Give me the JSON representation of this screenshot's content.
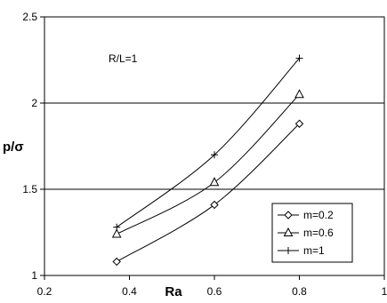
{
  "chart_data": {
    "type": "line",
    "title": "",
    "xlabel": "Ra",
    "ylabel": "p/σ",
    "xlim": [
      0.2,
      1
    ],
    "ylim": [
      1,
      2.5
    ],
    "xticks": [
      "0.2",
      "0.4",
      "0.6",
      "0.8",
      "1"
    ],
    "yticks": [
      "1",
      "1.5",
      "2",
      "2.5"
    ],
    "xtick_values": [
      0.2,
      0.4,
      0.6,
      0.8,
      1.0
    ],
    "ytick_values": [
      1.0,
      1.5,
      2.0,
      2.5
    ],
    "horizontal_gridlines": [
      1.5,
      2.0
    ],
    "annotation": "R/L=1",
    "legend_position": "bottom-right",
    "series": [
      {
        "name": "m=0.2",
        "marker": "diamond",
        "color": "#000000",
        "points": [
          [
            0.37,
            1.08
          ],
          [
            0.6,
            1.41
          ],
          [
            0.8,
            1.88
          ]
        ]
      },
      {
        "name": "m=0.6",
        "marker": "triangle",
        "color": "#000000",
        "points": [
          [
            0.37,
            1.24
          ],
          [
            0.6,
            1.54
          ],
          [
            0.8,
            2.05
          ]
        ]
      },
      {
        "name": "m=1",
        "marker": "plus",
        "color": "#000000",
        "points": [
          [
            0.37,
            1.28
          ],
          [
            0.6,
            1.7
          ],
          [
            0.8,
            2.26
          ]
        ]
      }
    ]
  }
}
